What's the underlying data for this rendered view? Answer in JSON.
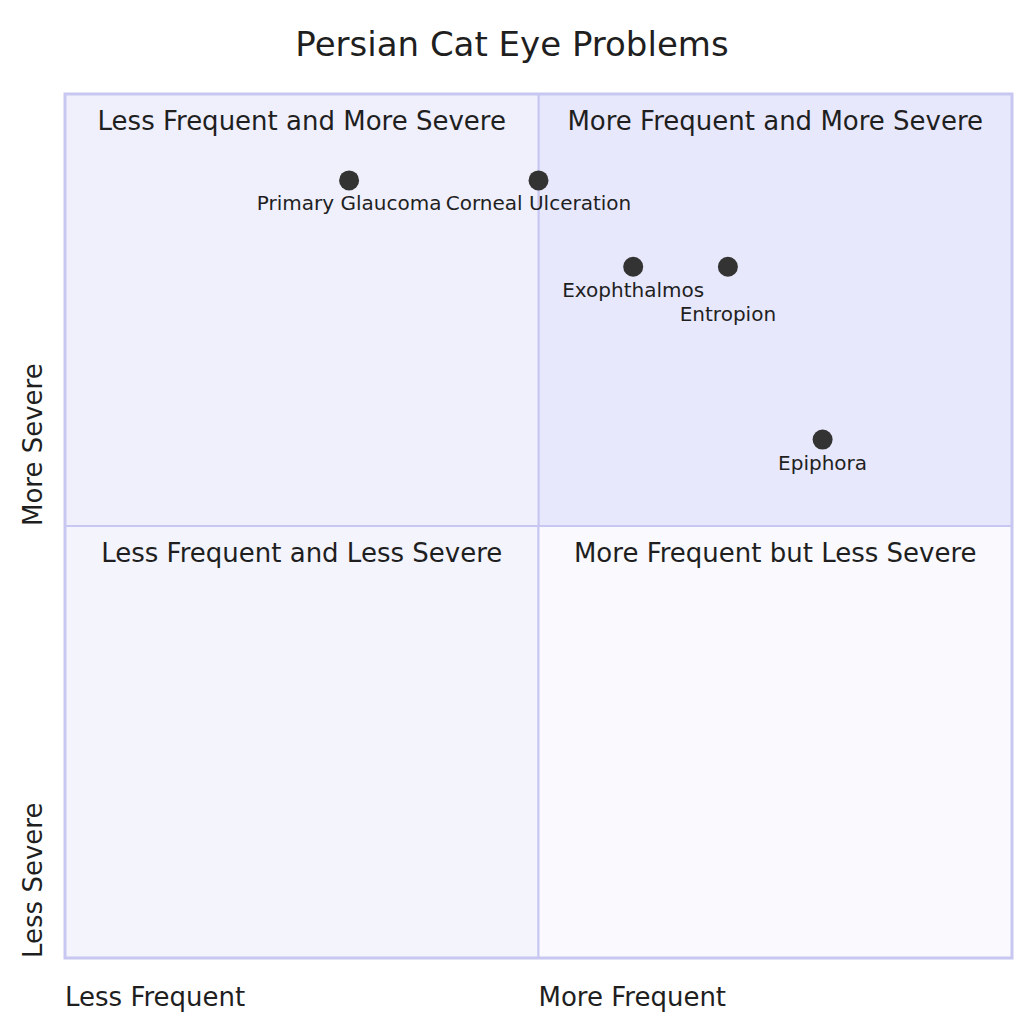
{
  "chart_data": {
    "type": "quadrant",
    "title": "Persian Cat Eye Problems",
    "x_axis_labels": [
      "Less Frequent",
      "More Frequent"
    ],
    "y_axis_labels": [
      "Less Severe",
      "More Severe"
    ],
    "quadrants": [
      "More Frequent and More Severe",
      "Less Frequent and More Severe",
      "Less Frequent and Less Severe",
      "More Frequent but Less Severe"
    ],
    "points": [
      {
        "label": "Primary Glaucoma",
        "x": 0.3,
        "y": 0.9
      },
      {
        "label": "Corneal Ulceration",
        "x": 0.5,
        "y": 0.9
      },
      {
        "label": "Exophthalmos",
        "x": 0.6,
        "y": 0.8
      },
      {
        "label": "Entropion",
        "x": 0.7,
        "y": 0.8
      },
      {
        "label": "Epiphora",
        "x": 0.8,
        "y": 0.6
      }
    ],
    "color": "#333333",
    "xlim": [
      0,
      1
    ],
    "ylim": [
      0,
      1
    ],
    "tick_labels": false
  }
}
